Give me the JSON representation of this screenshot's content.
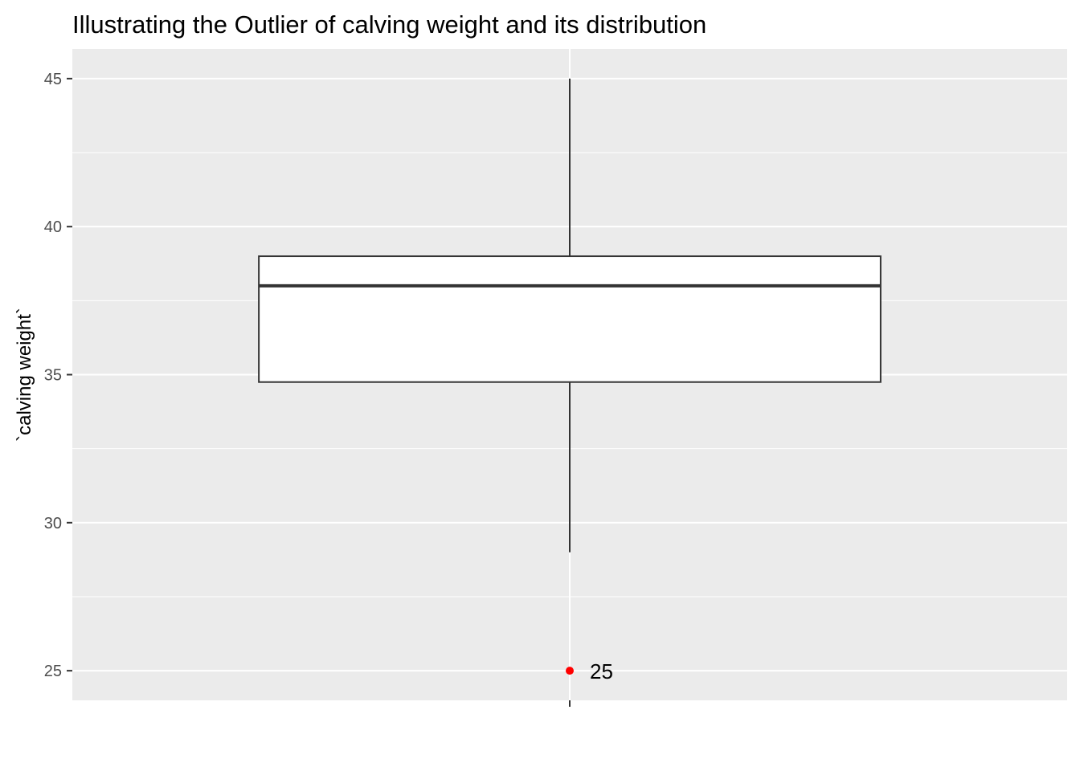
{
  "chart_data": {
    "type": "boxplot",
    "title": "Illustrating the Outlier of calving weight and its distribution",
    "xlabel": "",
    "ylabel": "`calving weight`",
    "ylim": [
      24,
      46
    ],
    "y_ticks": [
      25,
      30,
      35,
      40,
      45
    ],
    "y_tick_labels": [
      "25",
      "30",
      "35",
      "40",
      "45"
    ],
    "grid": true,
    "panel_background": "#EBEBEB",
    "box": {
      "whisker_low": 29,
      "q1": 34.75,
      "median": 38,
      "q3": 39,
      "whisker_high": 45,
      "fill": "#FFFFFF",
      "stroke": "#333333"
    },
    "outliers": [
      {
        "value": 25,
        "label": "25",
        "color": "#FF0000"
      }
    ]
  }
}
